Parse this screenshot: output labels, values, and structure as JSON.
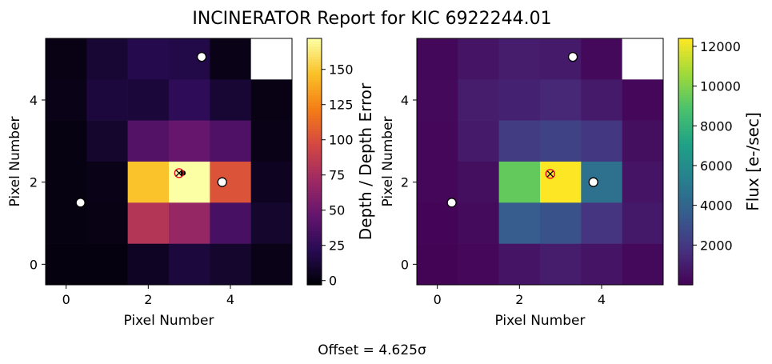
{
  "title": "INCINERATOR Report for KIC 6922244.01",
  "offset_label": "Offset = 4.625σ",
  "chart_data": [
    {
      "type": "heatmap",
      "name": "depth-over-error",
      "xlabel": "Pixel Number",
      "ylabel": "Pixel Number",
      "colorbar_label": "Depth / Depth Error",
      "colormap": "inferno",
      "xlim": [
        -0.5,
        5.5
      ],
      "ylim": [
        -0.5,
        5.5
      ],
      "xticks": [
        0,
        2,
        4
      ],
      "yticks": [
        0,
        2,
        4
      ],
      "vmin": -3,
      "vmax": 172,
      "colorbar_ticks": [
        0,
        25,
        50,
        75,
        100,
        125,
        150
      ],
      "values": [
        [
          2,
          12,
          20,
          18,
          3,
          null
        ],
        [
          3,
          15,
          14,
          25,
          12,
          2
        ],
        [
          1,
          10,
          40,
          48,
          38,
          3
        ],
        [
          1,
          3,
          148,
          172,
          102,
          6
        ],
        [
          1,
          2,
          82,
          68,
          35,
          10
        ],
        [
          0,
          0,
          7,
          15,
          10,
          3
        ]
      ],
      "markers": [
        {
          "type": "centroid",
          "x": 0.35,
          "y": 1.5
        },
        {
          "type": "centroid",
          "x": 3.3,
          "y": 5.05
        },
        {
          "type": "centroid",
          "x": 3.8,
          "y": 2.0
        },
        {
          "type": "centroid-small",
          "x": 2.85,
          "y": 2.22
        },
        {
          "type": "target",
          "x": 2.75,
          "y": 2.22
        }
      ]
    },
    {
      "type": "heatmap",
      "name": "flux",
      "xlabel": "Pixel Number",
      "ylabel": "Pixel Number",
      "colorbar_label": "Flux [e-/sec]",
      "colormap": "viridis",
      "xlim": [
        -0.5,
        5.5
      ],
      "ylim": [
        -0.5,
        5.5
      ],
      "xticks": [
        0,
        2,
        4
      ],
      "yticks": [
        0,
        2,
        4
      ],
      "vmin": 0,
      "vmax": 12400,
      "colorbar_ticks": [
        2000,
        4000,
        6000,
        8000,
        10000,
        12000
      ],
      "values": [
        [
          250,
          700,
          1000,
          900,
          300,
          null
        ],
        [
          300,
          1000,
          1200,
          1400,
          900,
          200
        ],
        [
          200,
          900,
          2200,
          2500,
          2000,
          500
        ],
        [
          200,
          500,
          9400,
          12400,
          4600,
          700
        ],
        [
          150,
          350,
          3600,
          3100,
          1900,
          850
        ],
        [
          100,
          200,
          700,
          1000,
          700,
          300
        ]
      ],
      "markers": [
        {
          "type": "centroid",
          "x": 0.35,
          "y": 1.5
        },
        {
          "type": "centroid",
          "x": 3.3,
          "y": 5.05
        },
        {
          "type": "centroid",
          "x": 3.8,
          "y": 2.0
        },
        {
          "type": "target",
          "x": 2.75,
          "y": 2.2
        }
      ]
    }
  ]
}
